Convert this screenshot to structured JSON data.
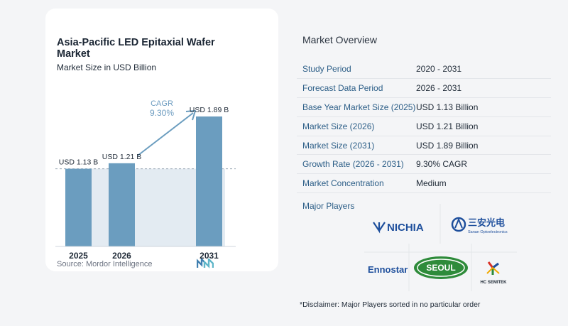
{
  "chart_data": {
    "type": "bar",
    "title": "Asia-Pacific LED Epitaxial Wafer Market",
    "subtitle": "Market Size in USD Billion",
    "categories": [
      "2025",
      "2026",
      "2031"
    ],
    "values": [
      1.13,
      1.21,
      1.89
    ],
    "data_labels": [
      "USD 1.13 B",
      "USD 1.21 B",
      "USD 1.89 B"
    ],
    "ylim": [
      0,
      1.89
    ],
    "cagr_label": "CAGR",
    "cagr_value": "9.30%",
    "grid": false,
    "bar_color": "#6b9dbf",
    "reference_fill": "#e3ebf2"
  },
  "source": "Source:  Mordor Intelligence",
  "overview": {
    "title": "Market Overview",
    "rows": [
      {
        "key": "Study Period",
        "value": "2020 - 2031"
      },
      {
        "key": "Forecast Data Period",
        "value": "2026 - 2031"
      },
      {
        "key": "Base Year Market Size (2025)",
        "value": "USD 1.13 Billion"
      },
      {
        "key": "Market Size (2026)",
        "value": "USD 1.21 Billion"
      },
      {
        "key": "Market Size (2031)",
        "value": "USD 1.89 Billion"
      },
      {
        "key": "Growth Rate (2026 - 2031)",
        "value": "9.30% CAGR"
      },
      {
        "key": "Market Concentration",
        "value": "Medium"
      }
    ]
  },
  "players": {
    "title": "Major Players",
    "names": [
      "NICHIA",
      "三安光电",
      "Sanan Optoelectronics",
      "Ennostar",
      "SEOUL",
      "HC SEMITEK"
    ]
  },
  "disclaimer": "*Disclaimer: Major Players sorted in no particular order"
}
